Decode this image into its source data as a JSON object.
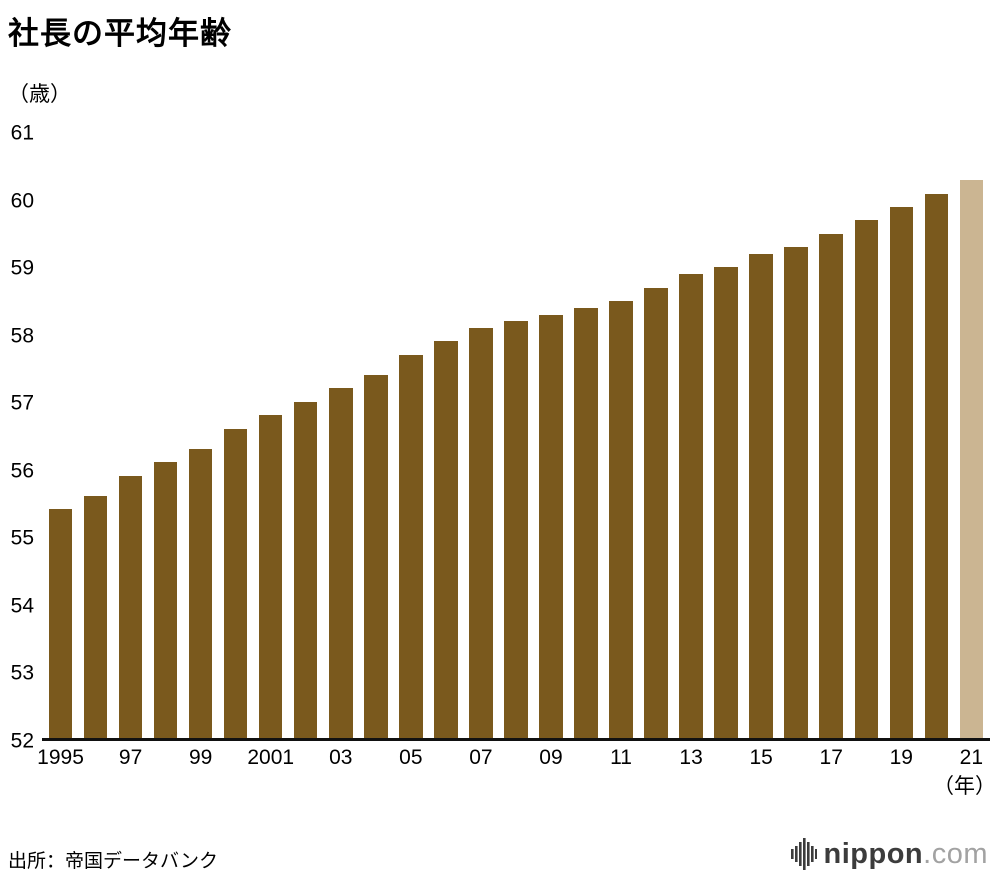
{
  "title": "社長の平均年齢",
  "y_unit": "（歳）",
  "x_unit": "（年）",
  "source": "出所：帝国データバンク",
  "logo": {
    "main": "nippon",
    "suffix": ".com"
  },
  "chart_data": {
    "type": "bar",
    "title": "社長の平均年齢",
    "ylabel": "（歳）",
    "xlabel": "（年）",
    "ylim": [
      52,
      61
    ],
    "yticks": [
      52,
      53,
      54,
      55,
      56,
      57,
      58,
      59,
      60,
      61
    ],
    "grid": false,
    "legend": "none",
    "categories": [
      1995,
      1996,
      1997,
      1998,
      1999,
      2000,
      2001,
      2002,
      2003,
      2004,
      2005,
      2006,
      2007,
      2008,
      2009,
      2010,
      2011,
      2012,
      2013,
      2014,
      2015,
      2016,
      2017,
      2018,
      2019,
      2020,
      2021
    ],
    "x_tick_labels": [
      "1995",
      "",
      "97",
      "",
      "99",
      "",
      "2001",
      "",
      "03",
      "",
      "05",
      "",
      "07",
      "",
      "09",
      "",
      "11",
      "",
      "13",
      "",
      "15",
      "",
      "17",
      "",
      "19",
      "",
      "21"
    ],
    "values": [
      55.4,
      55.6,
      55.9,
      56.1,
      56.3,
      56.6,
      56.8,
      57.0,
      57.2,
      57.4,
      57.7,
      57.9,
      58.1,
      58.2,
      58.3,
      58.4,
      58.5,
      58.7,
      58.9,
      59.0,
      59.2,
      59.3,
      59.5,
      59.7,
      59.9,
      60.1,
      60.3
    ],
    "bar_color": "#7a591d",
    "highlight_color": "#cbb592",
    "highlight_index": 26
  }
}
